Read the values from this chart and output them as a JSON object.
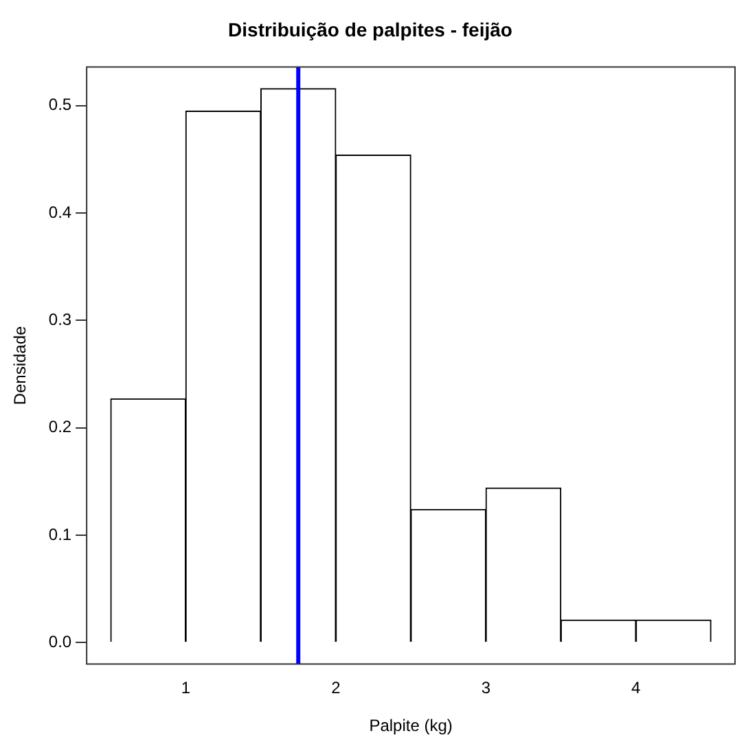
{
  "chart_data": {
    "type": "histogram",
    "title": "Distribuição de palpites - feijão",
    "xlabel": "Palpite (kg)",
    "ylabel": "Densidade",
    "bins": [
      0.5,
      1,
      1.5,
      2,
      2.5,
      3,
      3.5,
      4,
      4.5
    ],
    "values": [
      0.227,
      0.495,
      0.516,
      0.454,
      0.124,
      0.144,
      0.021,
      0.021
    ],
    "color": "#ffffff",
    "xlim": [
      0.34,
      4.66
    ],
    "xticks": [
      1,
      2,
      3,
      4
    ],
    "ylim": [
      -0.02,
      0.536
    ],
    "yticks": [
      {
        "value": 0,
        "label": "0.0"
      },
      0.1,
      0.2,
      0.3,
      0.4,
      0.5
    ],
    "ref_lines": [
      {
        "axis": "x",
        "value": 1.75,
        "color": "#0000ff"
      }
    ],
    "grid": false,
    "legend": false
  }
}
